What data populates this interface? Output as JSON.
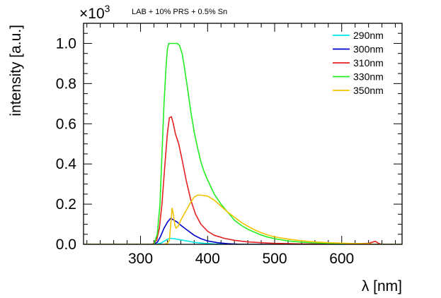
{
  "chart_data": {
    "type": "line",
    "title": "LAB + 10% PRS + 0.5% Sn",
    "xlabel": "λ [nm]",
    "ylabel": "intensity [a.u.]",
    "y_multiplier": {
      "base": "×10",
      "exponent": "3"
    },
    "xlim": [
      215,
      690
    ],
    "ylim": [
      0,
      1.1
    ],
    "x_major_ticks": [
      300,
      400,
      500,
      600
    ],
    "x_tick_labels": [
      "300",
      "400",
      "500",
      "600"
    ],
    "y_major_ticks": [
      0,
      0.2,
      0.4,
      0.6,
      0.8,
      1.0
    ],
    "y_tick_labels": [
      "0.0",
      "0.2",
      "0.4",
      "0.6",
      "0.8",
      "1.0"
    ],
    "legend_position": "top-right",
    "series": [
      {
        "name": "290nm",
        "color": "#00e5e5",
        "points": [
          [
            215,
            0
          ],
          [
            320,
            0
          ],
          [
            330,
            0.005
          ],
          [
            335,
            0.015
          ],
          [
            340,
            0.025
          ],
          [
            345,
            0.03
          ],
          [
            350,
            0.028
          ],
          [
            360,
            0.022
          ],
          [
            370,
            0.016
          ],
          [
            380,
            0.01
          ],
          [
            395,
            0.005
          ],
          [
            410,
            0.002
          ],
          [
            430,
            0
          ],
          [
            690,
            0
          ]
        ]
      },
      {
        "name": "300nm",
        "color": "#0000cc",
        "points": [
          [
            215,
            0
          ],
          [
            318,
            0
          ],
          [
            325,
            0.01
          ],
          [
            330,
            0.04
          ],
          [
            335,
            0.08
          ],
          [
            340,
            0.11
          ],
          [
            345,
            0.13
          ],
          [
            350,
            0.12
          ],
          [
            355,
            0.11
          ],
          [
            360,
            0.095
          ],
          [
            370,
            0.07
          ],
          [
            380,
            0.045
          ],
          [
            390,
            0.028
          ],
          [
            400,
            0.017
          ],
          [
            415,
            0.008
          ],
          [
            430,
            0.003
          ],
          [
            450,
            0
          ],
          [
            690,
            0
          ]
        ]
      },
      {
        "name": "310nm",
        "color": "#e52020",
        "points": [
          [
            215,
            0
          ],
          [
            318,
            0
          ],
          [
            324,
            0.02
          ],
          [
            328,
            0.08
          ],
          [
            332,
            0.2
          ],
          [
            336,
            0.38
          ],
          [
            340,
            0.55
          ],
          [
            343,
            0.63
          ],
          [
            346,
            0.635
          ],
          [
            349,
            0.6
          ],
          [
            352,
            0.55
          ],
          [
            357,
            0.5
          ],
          [
            362,
            0.42
          ],
          [
            368,
            0.32
          ],
          [
            375,
            0.22
          ],
          [
            382,
            0.15
          ],
          [
            390,
            0.1
          ],
          [
            400,
            0.065
          ],
          [
            410,
            0.045
          ],
          [
            425,
            0.03
          ],
          [
            440,
            0.02
          ],
          [
            460,
            0.012
          ],
          [
            480,
            0.008
          ],
          [
            500,
            0.005
          ],
          [
            540,
            0.002
          ],
          [
            600,
            0.001
          ],
          [
            640,
            0.005
          ],
          [
            650,
            0.015
          ],
          [
            655,
            0.005
          ],
          [
            660,
            0
          ],
          [
            690,
            0
          ]
        ]
      },
      {
        "name": "330nm",
        "color": "#22ee22",
        "points": [
          [
            215,
            0
          ],
          [
            320,
            0
          ],
          [
            325,
            0.05
          ],
          [
            329,
            0.2
          ],
          [
            332,
            0.45
          ],
          [
            335,
            0.7
          ],
          [
            338,
            0.88
          ],
          [
            340,
            0.97
          ],
          [
            342,
            1.0
          ],
          [
            350,
            1.0
          ],
          [
            355,
            1.0
          ],
          [
            358,
            0.99
          ],
          [
            362,
            0.95
          ],
          [
            365,
            0.89
          ],
          [
            370,
            0.78
          ],
          [
            375,
            0.66
          ],
          [
            380,
            0.56
          ],
          [
            385,
            0.48
          ],
          [
            390,
            0.41
          ],
          [
            395,
            0.36
          ],
          [
            400,
            0.32
          ],
          [
            405,
            0.285
          ],
          [
            410,
            0.25
          ],
          [
            420,
            0.2
          ],
          [
            430,
            0.16
          ],
          [
            440,
            0.12
          ],
          [
            450,
            0.095
          ],
          [
            460,
            0.075
          ],
          [
            470,
            0.06
          ],
          [
            480,
            0.046
          ],
          [
            490,
            0.036
          ],
          [
            500,
            0.028
          ],
          [
            520,
            0.017
          ],
          [
            540,
            0.011
          ],
          [
            560,
            0.007
          ],
          [
            580,
            0.005
          ],
          [
            600,
            0.004
          ],
          [
            620,
            0.003
          ],
          [
            635,
            0.002
          ],
          [
            640,
            0
          ],
          [
            690,
            0
          ]
        ]
      },
      {
        "name": "350nm",
        "color": "#f2c300",
        "points": [
          [
            215,
            0
          ],
          [
            335,
            0
          ],
          [
            340,
            0.005
          ],
          [
            343,
            0.02
          ],
          [
            345,
            0.1
          ],
          [
            347,
            0.18
          ],
          [
            349,
            0.15
          ],
          [
            351,
            0.1
          ],
          [
            353,
            0.08
          ],
          [
            356,
            0.09
          ],
          [
            360,
            0.12
          ],
          [
            365,
            0.15
          ],
          [
            370,
            0.18
          ],
          [
            375,
            0.21
          ],
          [
            380,
            0.235
          ],
          [
            385,
            0.245
          ],
          [
            390,
            0.245
          ],
          [
            400,
            0.24
          ],
          [
            410,
            0.22
          ],
          [
            420,
            0.19
          ],
          [
            430,
            0.16
          ],
          [
            440,
            0.135
          ],
          [
            450,
            0.11
          ],
          [
            460,
            0.09
          ],
          [
            470,
            0.072
          ],
          [
            480,
            0.058
          ],
          [
            490,
            0.046
          ],
          [
            500,
            0.037
          ],
          [
            520,
            0.026
          ],
          [
            540,
            0.018
          ],
          [
            560,
            0.012
          ],
          [
            580,
            0.008
          ],
          [
            600,
            0.006
          ],
          [
            620,
            0.004
          ],
          [
            640,
            0.003
          ],
          [
            650,
            0
          ],
          [
            690,
            0
          ]
        ]
      }
    ]
  }
}
